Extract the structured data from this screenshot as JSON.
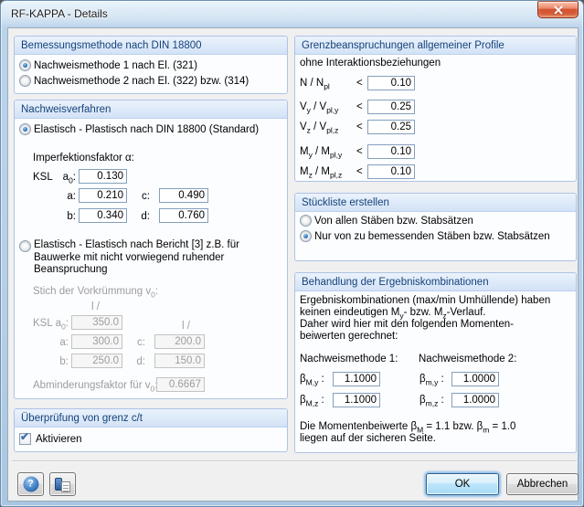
{
  "window": {
    "title": "RF-KAPPA - Details"
  },
  "icons": {
    "help": "?",
    "check": "✔"
  },
  "bemessung": {
    "title": "Bemessungsmethode nach DIN 18800",
    "option1": {
      "label": "Nachweismethode 1 nach El. (321)",
      "selected": true
    },
    "option2": {
      "label": "Nachweismethode 2 nach El. (322) bzw. (314)",
      "selected": false
    }
  },
  "nachweis": {
    "title": "Nachweisverfahren",
    "option_ep": {
      "label": "Elastisch - Plastisch nach DIN 18800 (Standard)",
      "selected": true
    },
    "imperfektion_label": "Imperfektionsfaktor α:",
    "ksl": "KSL",
    "label_a0": [
      {
        "t": "a"
      },
      {
        "s": "0"
      },
      {
        "t": ":"
      }
    ],
    "label_a": "a:",
    "label_b": "b:",
    "label_c": "c:",
    "label_d": "d:",
    "alpha": {
      "a0": "0.130",
      "a": "0.210",
      "b": "0.340",
      "c": "0.490",
      "d": "0.760"
    },
    "option_ee": {
      "label": "Elastisch - Elastisch nach Bericht [3] z.B. für Bauwerke mit nicht vorwiegend ruhender Beanspruchung",
      "selected": false
    },
    "stich_label": [
      {
        "t": "Stich der Vorkrümmung v"
      },
      {
        "s": "0"
      },
      {
        "t": ":"
      }
    ],
    "l_over": "l /",
    "v0": {
      "a0": "350.0",
      "a": "300.0",
      "b": "250.0",
      "c": "200.0",
      "d": "150.0"
    },
    "abmin_label": [
      {
        "t": "Abminderungsfaktor für v"
      },
      {
        "s": "0"
      },
      {
        "t": ":"
      }
    ],
    "abmin_value": "0.6667"
  },
  "grenzct": {
    "title": "Überprüfung von grenz c/t",
    "checkbox_label": "Aktivieren",
    "checked": true
  },
  "grenzbean": {
    "title": "Grenzbeanspruchungen allgemeiner Profile",
    "subtitle": "ohne Interaktionsbeziehungen",
    "rows": [
      {
        "label": [
          {
            "t": "N / N"
          },
          {
            "s": "pl"
          }
        ],
        "op": "<",
        "value": "0.10"
      },
      {
        "label": [
          {
            "t": "V"
          },
          {
            "s": "y"
          },
          {
            "t": " / V"
          },
          {
            "s": "pl,y"
          }
        ],
        "op": "<",
        "value": "0.25"
      },
      {
        "label": [
          {
            "t": "V"
          },
          {
            "s": "z"
          },
          {
            "t": " / V"
          },
          {
            "s": "pl,z"
          }
        ],
        "op": "<",
        "value": "0.25"
      },
      {
        "label": [
          {
            "t": "M"
          },
          {
            "s": "y"
          },
          {
            "t": " / M"
          },
          {
            "s": "pl,y"
          }
        ],
        "op": "<",
        "value": "0.10"
      },
      {
        "label": [
          {
            "t": "M"
          },
          {
            "s": "z"
          },
          {
            "t": " / M"
          },
          {
            "s": "pl,z"
          }
        ],
        "op": "<",
        "value": "0.10"
      }
    ]
  },
  "stueckliste": {
    "title": "Stückliste erstellen",
    "option1": {
      "label": "Von allen Stäben bzw. Stabsätzen",
      "selected": false
    },
    "option2": {
      "label": "Nur von zu bemessenden Stäben bzw. Stabsätzen",
      "selected": true
    }
  },
  "ergebnis": {
    "title": "Behandlung der Ergebniskombinationen",
    "para1": "Ergebniskombinationen (max/min Umhüllende) haben",
    "para2": [
      {
        "t": "keinen eindeutigen M"
      },
      {
        "s": "y"
      },
      {
        "t": "- bzw. M"
      },
      {
        "s": "z"
      },
      {
        "t": "-Verlauf."
      }
    ],
    "para3": "Daher wird hier mit den folgenden Momenten-",
    "para4": "beiwerten gerechnet:",
    "method1": "Nachweismethode 1:",
    "method2": "Nachweismethode 2:",
    "beta_My_label": [
      {
        "t": "β"
      },
      {
        "s": "M,y"
      },
      {
        "t": " :"
      }
    ],
    "beta_My": "1.1000",
    "beta_my_label": [
      {
        "t": "β"
      },
      {
        "s": "m,y"
      },
      {
        "t": " :"
      }
    ],
    "beta_my": "1.0000",
    "beta_Mz_label": [
      {
        "t": "β"
      },
      {
        "s": "M,z"
      },
      {
        "t": " :"
      }
    ],
    "beta_Mz": "1.1000",
    "beta_mz_label": [
      {
        "t": "β"
      },
      {
        "s": "m,z"
      },
      {
        "t": " :"
      }
    ],
    "beta_mz": "1.0000",
    "note1": [
      {
        "t": "Die Momentenbeiwerte β"
      },
      {
        "s": "M"
      },
      {
        "t": " = 1.1 bzw. β"
      },
      {
        "s": "m"
      },
      {
        "t": " = 1.0"
      }
    ],
    "note2": "liegen auf der sicheren Seite."
  },
  "footer": {
    "ok": "OK",
    "cancel": "Abbrechen"
  }
}
